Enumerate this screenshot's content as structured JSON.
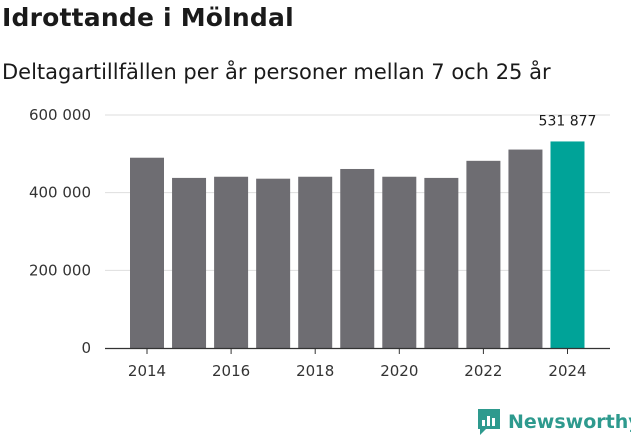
{
  "header": {
    "title": "Idrottande i Mölndal",
    "subtitle": "Deltagartillfällen per år personer mellan 7 och 25 år"
  },
  "colors": {
    "bar": "#6e6d72",
    "highlight": "#00a398",
    "grid": "#dedede",
    "axis": "#333333",
    "brand": "#2e9a8e"
  },
  "chart_data": {
    "type": "bar",
    "title": "Idrottande i Mölndal",
    "subtitle": "Deltagartillfällen per år personer mellan 7 och 25 år",
    "xlabel": "",
    "ylabel": "",
    "categories": [
      "2014",
      "2015",
      "2016",
      "2017",
      "2018",
      "2019",
      "2020",
      "2021",
      "2022",
      "2023",
      "2024"
    ],
    "values": [
      490000,
      438000,
      441000,
      436000,
      441000,
      461000,
      441000,
      438000,
      482000,
      511000,
      531877
    ],
    "highlight_index": 10,
    "data_labels": [
      {
        "index": 10,
        "text": "531 877"
      }
    ],
    "ylim": [
      0,
      600000
    ],
    "yticks": [
      {
        "value": 0,
        "label": "0"
      },
      {
        "value": 200000,
        "label": "200 000"
      },
      {
        "value": 400000,
        "label": "400 000"
      },
      {
        "value": 600000,
        "label": "600 000"
      }
    ],
    "xticks": [
      "2014",
      "2016",
      "2018",
      "2020",
      "2022",
      "2024"
    ],
    "grid": true
  },
  "brand": {
    "name": "Newsworthy",
    "icon": "bar-chart-speech-icon"
  }
}
